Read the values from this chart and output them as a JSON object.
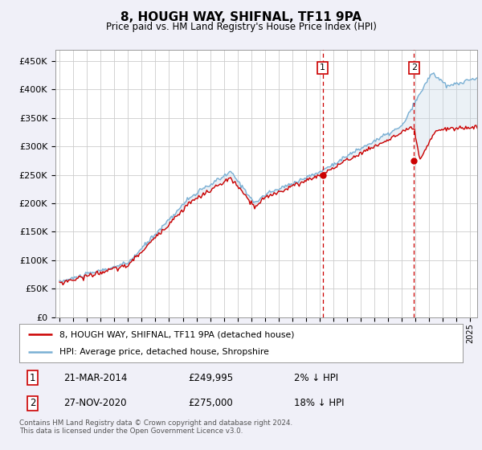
{
  "title": "8, HOUGH WAY, SHIFNAL, TF11 9PA",
  "subtitle": "Price paid vs. HM Land Registry's House Price Index (HPI)",
  "background_color": "#f0f0f8",
  "plot_background": "#ffffff",
  "ylabel_ticks": [
    "£0",
    "£50K",
    "£100K",
    "£150K",
    "£200K",
    "£250K",
    "£300K",
    "£350K",
    "£400K",
    "£450K"
  ],
  "ytick_vals": [
    0,
    50000,
    100000,
    150000,
    200000,
    250000,
    300000,
    350000,
    400000,
    450000
  ],
  "ylim": [
    0,
    470000
  ],
  "transaction1": {
    "date": "21-MAR-2014",
    "price": 249995,
    "label": "1",
    "pct": "2% ↓ HPI",
    "year": 2014.21
  },
  "transaction2": {
    "date": "27-NOV-2020",
    "price": 275000,
    "label": "2",
    "pct": "18% ↓ HPI",
    "year": 2020.88
  },
  "legend_line1": "8, HOUGH WAY, SHIFNAL, TF11 9PA (detached house)",
  "legend_line2": "HPI: Average price, detached house, Shropshire",
  "footnote": "Contains HM Land Registry data © Crown copyright and database right 2024.\nThis data is licensed under the Open Government Licence v3.0.",
  "hpi_color": "#7ab0d4",
  "price_color": "#cc0000",
  "vline_color": "#cc0000",
  "marker_color": "#cc0000",
  "grid_color": "#cccccc",
  "shade_color": "#c8d8e8",
  "x_start_year": 1995,
  "x_end_year": 2025
}
